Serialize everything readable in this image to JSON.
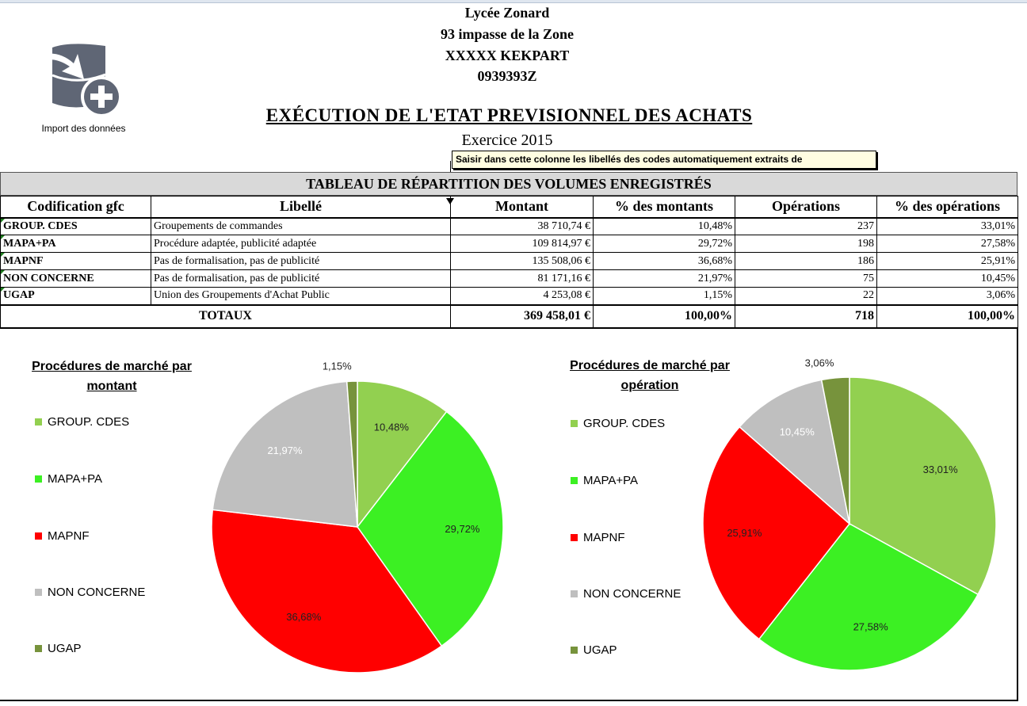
{
  "header": {
    "school": "Lycée Zonard",
    "address": "93 impasse de la Zone",
    "city": "XXXXX KEKPART",
    "code": "0939393Z"
  },
  "import_button": {
    "label": "Import des données",
    "icon": "database-import-icon"
  },
  "title": "EXÉCUTION DE L'ETAT PREVISIONNEL DES ACHATS",
  "exercice": "Exercice 2015",
  "tooltip": "Saisir dans cette colonne les libellés des codes automatiquement extraits de",
  "table": {
    "section_title": "TABLEAU DE RÉPARTITION DES VOLUMES ENREGISTRÉS",
    "columns": [
      "Codification gfc",
      "Libellé",
      "Montant",
      "% des montants",
      "Opérations",
      "% des opérations"
    ],
    "rows": [
      [
        "GROUP. CDES",
        "Groupements de commandes",
        "38 710,74 €",
        "10,48%",
        "237",
        "33,01%"
      ],
      [
        "MAPA+PA",
        "Procédure adaptée, publicité adaptée",
        "109 814,97 €",
        "29,72%",
        "198",
        "27,58%"
      ],
      [
        "MAPNF",
        "Pas de formalisation, pas de publicité",
        "135 508,06 €",
        "36,68%",
        "186",
        "25,91%"
      ],
      [
        "NON CONCERNE",
        "Pas de formalisation, pas de publicité",
        "81 171,16 €",
        "21,97%",
        "75",
        "10,45%"
      ],
      [
        "UGAP",
        "Union des Groupements d'Achat Public",
        "4 253,08 €",
        "1,15%",
        "22",
        "3,06%"
      ]
    ],
    "totals": {
      "label": "TOTAUX",
      "montant": "369 458,01 €",
      "pct_montant": "100,00%",
      "operations": "718",
      "pct_operations": "100,00%"
    }
  },
  "chart_data": [
    {
      "type": "pie",
      "title": "Procédures de marché par montant",
      "categories": [
        "GROUP. CDES",
        "MAPA+PA",
        "MAPNF",
        "NON CONCERNE",
        "UGAP"
      ],
      "values": [
        10.48,
        29.72,
        36.68,
        21.97,
        1.15
      ],
      "labels": [
        "10,48%",
        "29,72%",
        "36,68%",
        "21,97%",
        "1,15%"
      ],
      "colors": [
        "#92d050",
        "#3cf023",
        "#ff0000",
        "#bfbfbf",
        "#77933c"
      ],
      "legend": "left"
    },
    {
      "type": "pie",
      "title": "Procédures de marché par opération",
      "categories": [
        "GROUP. CDES",
        "MAPA+PA",
        "MAPNF",
        "NON CONCERNE",
        "UGAP"
      ],
      "values": [
        33.01,
        27.58,
        25.91,
        10.45,
        3.06
      ],
      "labels": [
        "33,01%",
        "27,58%",
        "25,91%",
        "10,45%",
        "3,06%"
      ],
      "colors": [
        "#92d050",
        "#3cf023",
        "#ff0000",
        "#bfbfbf",
        "#77933c"
      ],
      "legend": "left"
    }
  ]
}
